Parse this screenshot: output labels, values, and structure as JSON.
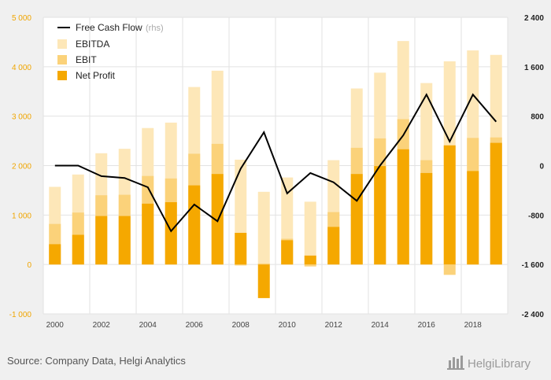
{
  "chart_data": {
    "type": "bar",
    "categories": [
      "2000",
      "2001",
      "2002",
      "2003",
      "2004",
      "2005",
      "2006",
      "2007",
      "2008",
      "2009",
      "2010",
      "2011",
      "2012",
      "2013",
      "2014",
      "2015",
      "2016",
      "2017",
      "2018",
      "2019"
    ],
    "x_tick_labels": [
      "2000",
      "2002",
      "2004",
      "2006",
      "2008",
      "2010",
      "2012",
      "2014",
      "2016",
      "2018"
    ],
    "series": [
      {
        "name": "EBITDA",
        "kind": "bar",
        "axis": "left",
        "color": "#fde7b8",
        "values": [
          1570,
          1820,
          2250,
          2340,
          2760,
          2870,
          3590,
          3920,
          2120,
          1470,
          1760,
          1270,
          2110,
          3560,
          3880,
          4520,
          3670,
          4110,
          4330,
          4240
        ]
      },
      {
        "name": "EBIT",
        "kind": "bar",
        "axis": "left",
        "color": "#fbd27a",
        "values": [
          820,
          1050,
          1400,
          1410,
          1790,
          1740,
          2240,
          2440,
          -20,
          20,
          520,
          -40,
          1060,
          2360,
          2550,
          2940,
          2110,
          -210,
          2560,
          2570
        ]
      },
      {
        "name": "Net Profit",
        "kind": "bar",
        "axis": "left",
        "color": "#f5a800",
        "values": [
          410,
          600,
          980,
          980,
          1230,
          1260,
          1600,
          1830,
          640,
          -680,
          490,
          180,
          760,
          1830,
          1990,
          2330,
          1850,
          2410,
          1890,
          2460
        ]
      },
      {
        "name": "Free Cash Flow",
        "label_suffix": "(rhs)",
        "kind": "line",
        "axis": "right",
        "color": "#000000",
        "values": [
          0,
          0,
          -170,
          -200,
          -350,
          -1060,
          -630,
          -900,
          -50,
          540,
          -450,
          -120,
          -270,
          -570,
          0,
          490,
          1150,
          390,
          1150,
          710
        ]
      }
    ],
    "left_axis": {
      "ylim": [
        -1000,
        5000
      ],
      "ticks": [
        "-1 000",
        "0",
        "1 000",
        "2 000",
        "3 000",
        "4 000",
        "5 000"
      ],
      "tick_values": [
        -1000,
        0,
        1000,
        2000,
        3000,
        4000,
        5000
      ]
    },
    "right_axis": {
      "ylim": [
        -2400,
        2400
      ],
      "ticks": [
        "-2 400",
        "-1 600",
        "-800",
        "0",
        "800",
        "1 600",
        "2 400"
      ],
      "tick_values": [
        -2400,
        -1600,
        -800,
        0,
        800,
        1600,
        2400
      ]
    },
    "legend_placement": "top-left",
    "grid": true,
    "title": "",
    "xlabel": "",
    "ylabel": ""
  },
  "footer": {
    "source": "Source: Company Data, Helgi Analytics",
    "logo": "HelgiLibrary"
  }
}
